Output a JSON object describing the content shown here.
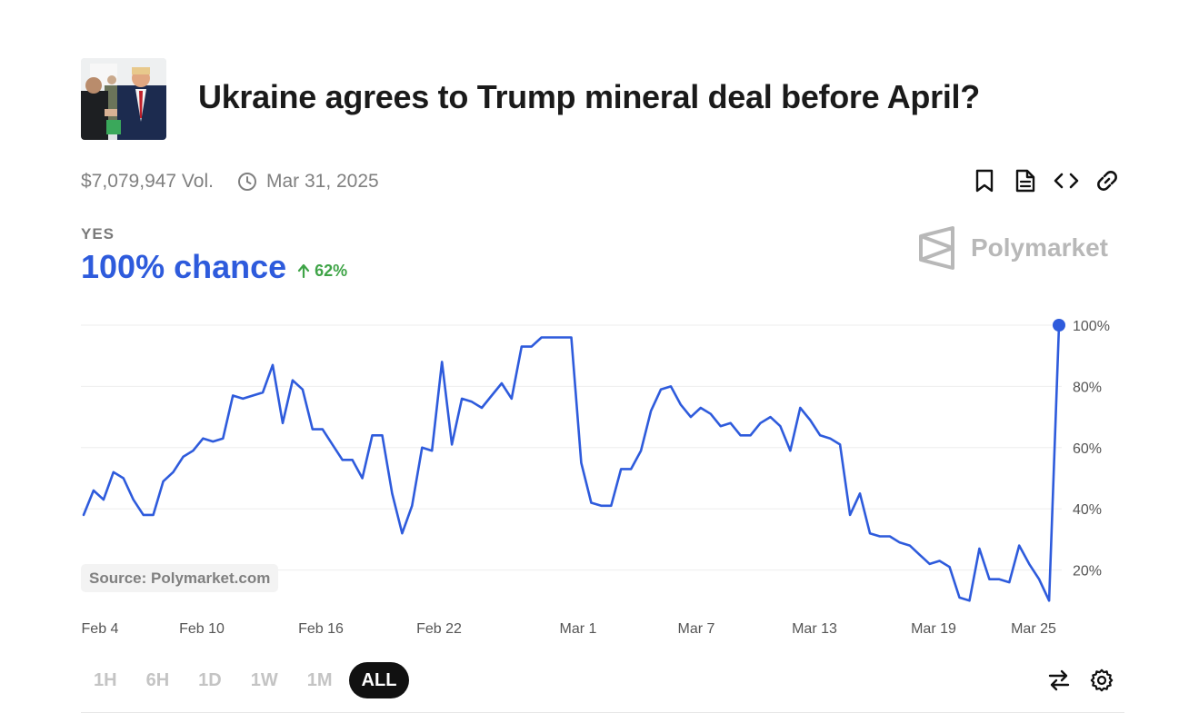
{
  "market": {
    "title": "Ukraine agrees to Trump mineral deal before April?",
    "thumbnail_icon": "market-photo-icon",
    "volume": "$7,079,947 Vol.",
    "end_date": "Mar 31, 2025"
  },
  "actions": [
    {
      "name": "bookmark-icon"
    },
    {
      "name": "document-icon"
    },
    {
      "name": "embed-code-icon"
    },
    {
      "name": "link-icon"
    }
  ],
  "outcome": {
    "label": "YES",
    "chance": "100% chance",
    "delta": "62%",
    "line_color": "#2e5bdc",
    "delta_color": "#3fa447"
  },
  "brand": {
    "name": "Polymarket",
    "icon": "polymarket-logo-icon"
  },
  "source": "Source: Polymarket.com",
  "ranges": [
    {
      "label": "1H",
      "active": false
    },
    {
      "label": "6H",
      "active": false
    },
    {
      "label": "1D",
      "active": false
    },
    {
      "label": "1W",
      "active": false
    },
    {
      "label": "1M",
      "active": false
    },
    {
      "label": "ALL",
      "active": true
    }
  ],
  "chart_data": {
    "type": "line",
    "x_ticks": [
      "Feb 4",
      "Feb 10",
      "Feb 16",
      "Feb 22",
      "Mar 1",
      "Mar 7",
      "Mar 13",
      "Mar 19",
      "Mar 25"
    ],
    "y_ticks": [
      "100%",
      "80%",
      "60%",
      "40%",
      "20%"
    ],
    "y_tick_values": [
      100,
      80,
      60,
      40,
      20
    ],
    "ylim": [
      0,
      100
    ],
    "grid": true,
    "x_range": [
      0,
      49
    ],
    "series": [
      {
        "x": [
          0,
          0.5,
          1,
          1.5,
          2,
          2.5,
          3,
          3.5,
          4,
          4.5,
          5,
          5.5,
          6,
          6.5,
          7,
          7.5,
          8,
          8.5,
          9,
          9.5,
          10,
          10.5,
          11,
          11.5,
          12,
          12.5,
          13,
          13.5,
          14,
          14.5,
          15,
          15.5,
          16,
          16.5,
          17,
          17.5,
          18,
          18.5,
          19,
          19.5,
          20,
          20.5,
          21,
          21.5,
          22,
          22.5,
          23,
          23.5,
          24,
          24.5,
          25,
          25.5,
          26,
          26.5,
          27,
          27.5,
          28,
          28.5,
          29,
          29.5,
          30,
          30.5,
          31,
          31.5,
          32,
          32.5,
          33,
          33.5,
          34,
          34.5,
          35,
          35.5,
          36,
          36.5,
          37,
          37.5,
          38,
          38.5,
          39,
          39.5,
          40,
          40.5,
          41,
          41.5,
          42,
          42.5,
          43,
          43.5,
          44,
          44.5,
          45,
          45.5,
          46,
          46.5,
          47,
          47.5,
          48,
          48.5,
          49
        ],
        "values": [
          38,
          46,
          43,
          52,
          50,
          43,
          38,
          38,
          49,
          52,
          57,
          59,
          63,
          62,
          63,
          77,
          76,
          77,
          78,
          87,
          68,
          82,
          79,
          66,
          66,
          61,
          56,
          56,
          50,
          64,
          64,
          45,
          32,
          41,
          60,
          59,
          88,
          61,
          76,
          75,
          73,
          77,
          81,
          76,
          93,
          93,
          96,
          96,
          96,
          96,
          55,
          42,
          41,
          41,
          53,
          53,
          59,
          72,
          79,
          80,
          74,
          70,
          73,
          71,
          67,
          68,
          64,
          64,
          68,
          70,
          67,
          59,
          73,
          69,
          64,
          63,
          61,
          38,
          45,
          32,
          31,
          31,
          29,
          28,
          25,
          22,
          23,
          21,
          11,
          10,
          27,
          17,
          17,
          16,
          28,
          22,
          17,
          10,
          100
        ]
      }
    ],
    "end_marker": true
  }
}
